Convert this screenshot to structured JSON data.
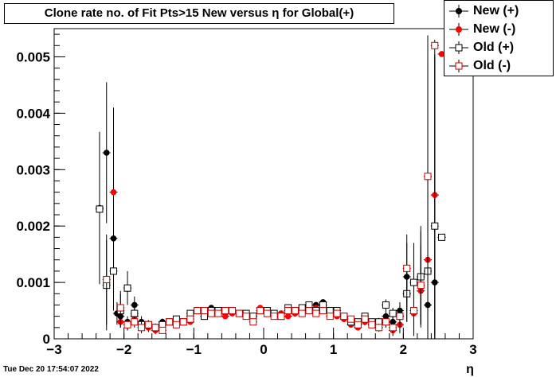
{
  "title": "Clone rate no. of Fit Pts>15 New versus  η for Global(+)",
  "timestamp": "Tue Dec 20 17:54:07 2022",
  "chart_data": {
    "type": "scatter",
    "xlabel": "η",
    "ylabel": "",
    "xlim": [
      -3,
      3
    ],
    "ylim": [
      0,
      0.0055
    ],
    "xticks": [
      "−3",
      "−2",
      "−1",
      "0",
      "1",
      "2",
      "3"
    ],
    "yticks": [
      "0",
      "0.001",
      "0.002",
      "0.003",
      "0.004",
      "0.005"
    ],
    "grid": true,
    "legend_position": "top-right",
    "series": [
      {
        "name": "New (+)",
        "color": "#000000",
        "marker": "filled-circle",
        "points": [
          [
            -2.35,
            0.00232,
            0.00135
          ],
          [
            -2.25,
            0.0033,
            0.00125
          ],
          [
            -2.15,
            0.00178,
            0.0006
          ],
          [
            -2.1,
            0.00045,
            0.0002
          ],
          [
            -2.05,
            0.0004,
            0.00015
          ],
          [
            -1.95,
            0.0003,
            0.0001
          ],
          [
            -1.85,
            0.0006,
            0.00015
          ],
          [
            -1.75,
            0.0003,
            0.0001
          ],
          [
            -1.65,
            0.00025,
            8e-05
          ],
          [
            -1.55,
            0.0002,
            6e-05
          ],
          [
            -1.45,
            0.0003,
            6e-05
          ],
          [
            -1.35,
            0.0003,
            5e-05
          ],
          [
            -1.25,
            0.00035,
            5e-05
          ],
          [
            -1.15,
            0.0003,
            5e-05
          ],
          [
            -1.05,
            0.0004,
            5e-05
          ],
          [
            -0.95,
            0.0005,
            5e-05
          ],
          [
            -0.85,
            0.0004,
            5e-05
          ],
          [
            -0.75,
            0.00055,
            5e-05
          ],
          [
            -0.65,
            0.0005,
            5e-05
          ],
          [
            -0.55,
            0.00045,
            5e-05
          ],
          [
            -0.45,
            0.0005,
            5e-05
          ],
          [
            -0.35,
            0.00045,
            5e-05
          ],
          [
            -0.25,
            0.0004,
            5e-05
          ],
          [
            -0.15,
            0.0004,
            5e-05
          ],
          [
            -0.05,
            0.0005,
            5e-05
          ],
          [
            0.05,
            0.0005,
            5e-05
          ],
          [
            0.15,
            0.0004,
            5e-05
          ],
          [
            0.25,
            0.00045,
            5e-05
          ],
          [
            0.35,
            0.0005,
            5e-05
          ],
          [
            0.45,
            0.00045,
            5e-05
          ],
          [
            0.55,
            0.0005,
            5e-05
          ],
          [
            0.65,
            0.0006,
            5e-05
          ],
          [
            0.75,
            0.0006,
            5e-05
          ],
          [
            0.85,
            0.00065,
            5e-05
          ],
          [
            0.95,
            0.0005,
            5e-05
          ],
          [
            1.05,
            0.00045,
            5e-05
          ],
          [
            1.15,
            0.0004,
            5e-05
          ],
          [
            1.25,
            0.0003,
            5e-05
          ],
          [
            1.35,
            0.00025,
            5e-05
          ],
          [
            1.45,
            0.0003,
            5e-05
          ],
          [
            1.55,
            0.0003,
            6e-05
          ],
          [
            1.65,
            0.00025,
            7e-05
          ],
          [
            1.75,
            0.0004,
            0.0001
          ],
          [
            1.85,
            0.0003,
            0.0001
          ],
          [
            1.95,
            0.0005,
            0.00015
          ],
          [
            2.05,
            0.0011,
            0.0006
          ],
          [
            2.15,
            0.001,
            0.0007
          ],
          [
            2.25,
            0.0011,
            0.0009
          ],
          [
            2.35,
            0.0006,
            0.0043
          ],
          [
            2.45,
            0.001,
            0.0043
          ],
          [
            2.55,
            0.0018,
            0.0
          ]
        ]
      },
      {
        "name": "New (-)",
        "color": "#ff0000",
        "marker": "filled-circle",
        "points": [
          [
            -2.15,
            0.0026,
            0.0015
          ],
          [
            -2.05,
            0.0003,
            0.0001
          ],
          [
            -1.95,
            0.00025,
            0.0001
          ],
          [
            -1.85,
            0.0004,
            0.0001
          ],
          [
            -1.75,
            0.00025,
            0.0001
          ],
          [
            -1.65,
            0.0002,
            8e-05
          ],
          [
            -1.55,
            0.00015,
            7e-05
          ],
          [
            -1.45,
            0.00025,
            6e-05
          ],
          [
            -1.35,
            0.0003,
            6e-05
          ],
          [
            -1.25,
            0.00025,
            6e-05
          ],
          [
            -1.15,
            0.0003,
            5e-05
          ],
          [
            -1.05,
            0.0003,
            5e-05
          ],
          [
            -0.95,
            0.0005,
            5e-05
          ],
          [
            -0.85,
            0.00045,
            5e-05
          ],
          [
            -0.75,
            0.00045,
            5e-05
          ],
          [
            -0.65,
            0.0005,
            5e-05
          ],
          [
            -0.55,
            0.0004,
            5e-05
          ],
          [
            -0.45,
            0.00045,
            5e-05
          ],
          [
            -0.35,
            0.00045,
            5e-05
          ],
          [
            -0.25,
            0.0004,
            5e-05
          ],
          [
            -0.15,
            0.0004,
            5e-05
          ],
          [
            -0.05,
            0.00055,
            5e-05
          ],
          [
            0.05,
            0.0005,
            5e-05
          ],
          [
            0.15,
            0.0004,
            5e-05
          ],
          [
            0.25,
            0.00045,
            5e-05
          ],
          [
            0.35,
            0.0004,
            5e-05
          ],
          [
            0.45,
            0.00045,
            5e-05
          ],
          [
            0.55,
            0.0005,
            5e-05
          ],
          [
            0.65,
            0.0005,
            5e-05
          ],
          [
            0.75,
            0.00055,
            5e-05
          ],
          [
            0.85,
            0.0006,
            5e-05
          ],
          [
            0.95,
            0.00045,
            5e-05
          ],
          [
            1.05,
            0.0004,
            5e-05
          ],
          [
            1.15,
            0.00035,
            5e-05
          ],
          [
            1.25,
            0.00025,
            5e-05
          ],
          [
            1.35,
            0.0002,
            5e-05
          ],
          [
            1.45,
            0.0003,
            6e-05
          ],
          [
            1.55,
            0.00025,
            6e-05
          ],
          [
            1.65,
            0.0002,
            7e-05
          ],
          [
            1.75,
            0.0003,
            0.0001
          ],
          [
            1.85,
            0.00015,
            0.0001
          ],
          [
            1.95,
            0.00025,
            0.00015
          ],
          [
            2.05,
            0.0008,
            0.0005
          ],
          [
            2.15,
            0.00045,
            0.0004
          ],
          [
            2.25,
            0.00085,
            0.0006
          ],
          [
            2.35,
            0.0014,
            0.0015
          ],
          [
            2.45,
            0.00255,
            0.0025
          ],
          [
            2.55,
            0.00505,
            0.0
          ]
        ]
      },
      {
        "name": "Old (+)",
        "color": "#000000",
        "marker": "open-square",
        "points": [
          [
            -2.35,
            0.0023,
            0.0013
          ],
          [
            -2.25,
            0.00095,
            0.0008
          ],
          [
            -2.15,
            0.0012,
            0.0007
          ],
          [
            -2.05,
            0.0005,
            0.0003
          ],
          [
            -1.95,
            0.0009,
            0.0003
          ],
          [
            -1.85,
            0.00045,
            0.00015
          ],
          [
            -1.75,
            0.00025,
            0.0001
          ],
          [
            -1.65,
            0.00025,
            8e-05
          ],
          [
            -1.55,
            0.0002,
            7e-05
          ],
          [
            -1.45,
            0.00025,
            6e-05
          ],
          [
            -1.35,
            0.0003,
            6e-05
          ],
          [
            -1.25,
            0.00035,
            6e-05
          ],
          [
            -1.15,
            0.0003,
            5e-05
          ],
          [
            -1.05,
            0.00045,
            5e-05
          ],
          [
            -0.95,
            0.0005,
            5e-05
          ],
          [
            -0.85,
            0.0004,
            5e-05
          ],
          [
            -0.75,
            0.0005,
            5e-05
          ],
          [
            -0.65,
            0.0005,
            5e-05
          ],
          [
            -0.55,
            0.0005,
            5e-05
          ],
          [
            -0.45,
            0.0005,
            5e-05
          ],
          [
            -0.35,
            0.00045,
            5e-05
          ],
          [
            -0.25,
            0.00045,
            5e-05
          ],
          [
            -0.15,
            0.0004,
            5e-05
          ],
          [
            -0.05,
            0.0005,
            5e-05
          ],
          [
            0.05,
            0.0005,
            5e-05
          ],
          [
            0.15,
            0.00045,
            5e-05
          ],
          [
            0.25,
            0.0004,
            5e-05
          ],
          [
            0.35,
            0.00055,
            5e-05
          ],
          [
            0.45,
            0.0005,
            5e-05
          ],
          [
            0.55,
            0.00055,
            5e-05
          ],
          [
            0.65,
            0.0006,
            5e-05
          ],
          [
            0.75,
            0.0005,
            5e-05
          ],
          [
            0.85,
            0.0006,
            5e-05
          ],
          [
            0.95,
            0.0005,
            5e-05
          ],
          [
            1.05,
            0.0005,
            5e-05
          ],
          [
            1.15,
            0.0004,
            5e-05
          ],
          [
            1.25,
            0.0003,
            5e-05
          ],
          [
            1.35,
            0.0003,
            6e-05
          ],
          [
            1.45,
            0.0004,
            6e-05
          ],
          [
            1.55,
            0.0003,
            6e-05
          ],
          [
            1.65,
            0.0003,
            7e-05
          ],
          [
            1.75,
            0.0006,
            0.0001
          ],
          [
            1.85,
            0.00045,
            0.0001
          ],
          [
            1.95,
            0.0004,
            0.0002
          ],
          [
            2.05,
            0.0008,
            0.0005
          ],
          [
            2.15,
            0.001,
            0.0006
          ],
          [
            2.25,
            0.0011,
            0.0008
          ],
          [
            2.35,
            0.0012,
            0.0037
          ],
          [
            2.45,
            0.002,
            0.003
          ],
          [
            2.55,
            0.0018,
            0.0
          ]
        ]
      },
      {
        "name": "Old (-)",
        "color": "#cc0000",
        "marker": "open-square",
        "points": [
          [
            -2.25,
            0.00105,
            0.0008
          ],
          [
            -2.05,
            0.00055,
            0.0003
          ],
          [
            -1.95,
            0.00025,
            0.0001
          ],
          [
            -1.85,
            0.0003,
            0.0001
          ],
          [
            -1.75,
            0.0002,
            0.0001
          ],
          [
            -1.65,
            0.00025,
            8e-05
          ],
          [
            -1.55,
            0.0002,
            7e-05
          ],
          [
            -1.45,
            0.00015,
            6e-05
          ],
          [
            -1.35,
            0.0003,
            6e-05
          ],
          [
            -1.25,
            0.00025,
            6e-05
          ],
          [
            -1.15,
            0.0003,
            5e-05
          ],
          [
            -1.05,
            0.00035,
            5e-05
          ],
          [
            -0.95,
            0.0005,
            5e-05
          ],
          [
            -0.85,
            0.0005,
            5e-05
          ],
          [
            -0.75,
            0.00045,
            5e-05
          ],
          [
            -0.65,
            0.00045,
            5e-05
          ],
          [
            -0.55,
            0.0005,
            5e-05
          ],
          [
            -0.45,
            0.0005,
            5e-05
          ],
          [
            -0.35,
            0.00045,
            5e-05
          ],
          [
            -0.25,
            0.0004,
            5e-05
          ],
          [
            -0.15,
            0.0003,
            5e-05
          ],
          [
            -0.05,
            0.0005,
            5e-05
          ],
          [
            0.05,
            0.00045,
            5e-05
          ],
          [
            0.15,
            0.0004,
            5e-05
          ],
          [
            0.25,
            0.0004,
            5e-05
          ],
          [
            0.35,
            0.0005,
            5e-05
          ],
          [
            0.45,
            0.0005,
            5e-05
          ],
          [
            0.55,
            0.00045,
            5e-05
          ],
          [
            0.65,
            0.0005,
            5e-05
          ],
          [
            0.75,
            0.00045,
            5e-05
          ],
          [
            0.85,
            0.0005,
            5e-05
          ],
          [
            0.95,
            0.0004,
            5e-05
          ],
          [
            1.05,
            0.00045,
            5e-05
          ],
          [
            1.15,
            0.0004,
            5e-05
          ],
          [
            1.25,
            0.00035,
            5e-05
          ],
          [
            1.35,
            0.00025,
            5e-05
          ],
          [
            1.45,
            0.00035,
            6e-05
          ],
          [
            1.55,
            0.00025,
            6e-05
          ],
          [
            1.65,
            0.0002,
            7e-05
          ],
          [
            1.75,
            0.0003,
            0.0001
          ],
          [
            1.85,
            0.0002,
            0.0001
          ],
          [
            1.95,
            0.0004,
            0.00015
          ],
          [
            2.05,
            0.00125,
            0.0006
          ],
          [
            2.15,
            0.0005,
            0.0004
          ],
          [
            2.25,
            0.00095,
            0.0007
          ],
          [
            2.35,
            0.00288,
            0.0025
          ],
          [
            2.45,
            0.0052,
            0.0
          ]
        ]
      }
    ]
  }
}
